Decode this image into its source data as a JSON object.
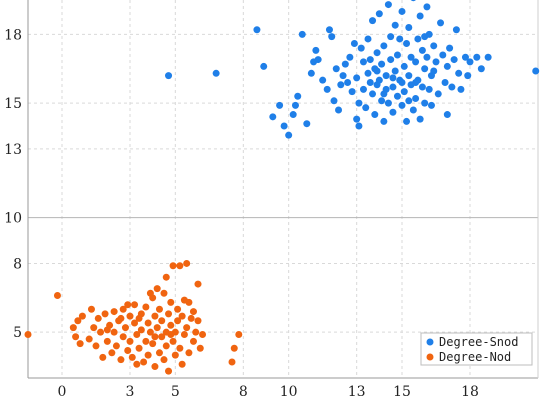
{
  "chart_data": {
    "type": "scatter",
    "title": "",
    "xlabel": "",
    "ylabel": "",
    "xlim": [
      -1.5,
      21
    ],
    "ylim": [
      3.0,
      19.5
    ],
    "x_ticks": [
      0,
      3,
      5,
      8,
      10,
      13,
      15,
      18
    ],
    "x_tick_labels": [
      "0",
      "3",
      "5",
      "8",
      "10",
      "13",
      "15",
      "18"
    ],
    "y_ticks": [
      5,
      8,
      10,
      13,
      15,
      18
    ],
    "y_tick_labels": [
      "5",
      "8",
      "10",
      "13",
      "15",
      "18"
    ],
    "grid": true,
    "legend_position": "bottom-right",
    "series": [
      {
        "name": "Degree-Snod",
        "color": "#1f7fe8",
        "points": [
          [
            4.7,
            16.2
          ],
          [
            6.8,
            16.3
          ],
          [
            8.6,
            18.2
          ],
          [
            8.9,
            16.6
          ],
          [
            9.3,
            14.4
          ],
          [
            9.6,
            14.9
          ],
          [
            9.8,
            14.0
          ],
          [
            10.0,
            13.6
          ],
          [
            10.2,
            14.5
          ],
          [
            10.3,
            14.9
          ],
          [
            10.4,
            15.3
          ],
          [
            10.6,
            18.0
          ],
          [
            10.8,
            14.1
          ],
          [
            11.0,
            16.3
          ],
          [
            11.1,
            16.8
          ],
          [
            11.2,
            17.3
          ],
          [
            11.3,
            16.9
          ],
          [
            11.5,
            16.0
          ],
          [
            11.7,
            15.6
          ],
          [
            11.8,
            18.2
          ],
          [
            11.9,
            17.9
          ],
          [
            12.0,
            15.1
          ],
          [
            12.1,
            16.5
          ],
          [
            12.2,
            14.7
          ],
          [
            12.3,
            15.8
          ],
          [
            12.4,
            16.2
          ],
          [
            12.6,
            15.9
          ],
          [
            12.7,
            17.0
          ],
          [
            12.8,
            15.5
          ],
          [
            12.9,
            17.6
          ],
          [
            13.0,
            16.1
          ],
          [
            13.0,
            14.3
          ],
          [
            13.1,
            15.0
          ],
          [
            13.2,
            17.4
          ],
          [
            13.3,
            16.8
          ],
          [
            13.3,
            15.6
          ],
          [
            13.4,
            14.8
          ],
          [
            13.5,
            16.3
          ],
          [
            13.5,
            17.8
          ],
          [
            13.6,
            15.9
          ],
          [
            13.6,
            16.9
          ],
          [
            13.7,
            15.4
          ],
          [
            13.7,
            18.6
          ],
          [
            13.8,
            16.5
          ],
          [
            13.8,
            14.5
          ],
          [
            13.9,
            17.2
          ],
          [
            13.9,
            15.8
          ],
          [
            14.0,
            16.0
          ],
          [
            14.0,
            18.9
          ],
          [
            14.1,
            15.1
          ],
          [
            14.1,
            16.7
          ],
          [
            14.2,
            14.2
          ],
          [
            14.2,
            17.5
          ],
          [
            14.3,
            15.6
          ],
          [
            14.3,
            16.2
          ],
          [
            14.4,
            19.3
          ],
          [
            14.4,
            15.0
          ],
          [
            14.5,
            16.9
          ],
          [
            14.5,
            17.9
          ],
          [
            14.6,
            15.7
          ],
          [
            14.6,
            14.6
          ],
          [
            14.7,
            16.4
          ],
          [
            14.7,
            18.4
          ],
          [
            14.8,
            15.3
          ],
          [
            14.8,
            17.1
          ],
          [
            14.9,
            16.0
          ],
          [
            15.0,
            19.0
          ],
          [
            15.0,
            14.9
          ],
          [
            15.1,
            16.6
          ],
          [
            15.1,
            15.5
          ],
          [
            15.2,
            17.6
          ],
          [
            15.2,
            14.2
          ],
          [
            15.3,
            16.2
          ],
          [
            15.3,
            18.3
          ],
          [
            15.4,
            15.8
          ],
          [
            15.4,
            17.0
          ],
          [
            15.5,
            14.7
          ],
          [
            15.5,
            19.6
          ],
          [
            15.6,
            16.8
          ],
          [
            15.6,
            15.2
          ],
          [
            15.7,
            17.8
          ],
          [
            15.7,
            16.0
          ],
          [
            15.8,
            14.3
          ],
          [
            15.8,
            18.8
          ],
          [
            15.9,
            15.7
          ],
          [
            15.9,
            17.3
          ],
          [
            16.0,
            16.5
          ],
          [
            16.0,
            15.0
          ],
          [
            16.1,
            19.2
          ],
          [
            16.1,
            17.0
          ],
          [
            16.2,
            15.6
          ],
          [
            16.2,
            18.0
          ],
          [
            16.3,
            16.2
          ],
          [
            16.3,
            14.9
          ],
          [
            16.4,
            17.5
          ],
          [
            16.5,
            16.8
          ],
          [
            16.6,
            15.4
          ],
          [
            16.7,
            18.5
          ],
          [
            16.8,
            17.1
          ],
          [
            16.9,
            15.9
          ],
          [
            17.0,
            14.5
          ],
          [
            17.0,
            16.6
          ],
          [
            17.1,
            17.4
          ],
          [
            17.2,
            15.7
          ],
          [
            17.3,
            16.9
          ],
          [
            17.4,
            18.2
          ],
          [
            17.5,
            16.3
          ],
          [
            17.6,
            15.6
          ],
          [
            17.8,
            17.0
          ],
          [
            18.0,
            16.8
          ],
          [
            18.3,
            17.0
          ],
          [
            18.5,
            16.5
          ],
          [
            18.8,
            17.0
          ],
          [
            20.9,
            16.4
          ],
          [
            13.1,
            14.0
          ],
          [
            14.6,
            16.1
          ],
          [
            15.0,
            15.9
          ],
          [
            12.5,
            16.7
          ],
          [
            16.4,
            16.4
          ],
          [
            15.6,
            15.9
          ],
          [
            13.9,
            16.4
          ],
          [
            14.9,
            17.8
          ],
          [
            16.0,
            17.9
          ],
          [
            15.3,
            15.1
          ],
          [
            14.2,
            15.4
          ],
          [
            17.9,
            16.2
          ]
        ]
      },
      {
        "name": "Degree-Nod",
        "color": "#f06410",
        "points": [
          [
            -1.5,
            4.9
          ],
          [
            -0.2,
            6.6
          ],
          [
            0.5,
            5.2
          ],
          [
            0.6,
            4.8
          ],
          [
            0.7,
            5.5
          ],
          [
            0.8,
            4.5
          ],
          [
            0.9,
            5.7
          ],
          [
            1.2,
            4.7
          ],
          [
            1.4,
            5.2
          ],
          [
            1.5,
            4.4
          ],
          [
            1.6,
            5.6
          ],
          [
            1.7,
            5.0
          ],
          [
            1.8,
            3.9
          ],
          [
            1.9,
            5.8
          ],
          [
            2.0,
            4.6
          ],
          [
            2.1,
            5.3
          ],
          [
            2.2,
            4.1
          ],
          [
            2.3,
            5.9
          ],
          [
            2.3,
            5.0
          ],
          [
            2.4,
            4.4
          ],
          [
            2.5,
            5.5
          ],
          [
            2.6,
            3.8
          ],
          [
            2.7,
            6.0
          ],
          [
            2.7,
            4.8
          ],
          [
            2.8,
            5.2
          ],
          [
            2.9,
            4.2
          ],
          [
            3.0,
            5.7
          ],
          [
            3.0,
            4.6
          ],
          [
            3.1,
            3.9
          ],
          [
            3.2,
            5.4
          ],
          [
            3.2,
            6.2
          ],
          [
            3.3,
            4.9
          ],
          [
            3.4,
            4.3
          ],
          [
            3.5,
            5.8
          ],
          [
            3.5,
            5.1
          ],
          [
            3.6,
            3.7
          ],
          [
            3.7,
            4.6
          ],
          [
            3.7,
            6.1
          ],
          [
            3.8,
            5.4
          ],
          [
            3.8,
            4.0
          ],
          [
            3.9,
            5.0
          ],
          [
            4.0,
            6.5
          ],
          [
            4.0,
            4.5
          ],
          [
            4.1,
            5.7
          ],
          [
            4.1,
            3.5
          ],
          [
            4.2,
            5.2
          ],
          [
            4.3,
            4.1
          ],
          [
            4.3,
            6.0
          ],
          [
            4.4,
            4.8
          ],
          [
            4.4,
            5.5
          ],
          [
            4.5,
            3.8
          ],
          [
            4.5,
            6.7
          ],
          [
            4.6,
            5.0
          ],
          [
            4.6,
            4.4
          ],
          [
            4.7,
            5.8
          ],
          [
            4.7,
            3.3
          ],
          [
            4.8,
            5.3
          ],
          [
            4.8,
            6.3
          ],
          [
            4.9,
            4.6
          ],
          [
            4.9,
            7.9
          ],
          [
            5.0,
            5.0
          ],
          [
            5.0,
            4.0
          ],
          [
            5.1,
            6.0
          ],
          [
            5.1,
            5.5
          ],
          [
            5.2,
            7.9
          ],
          [
            5.2,
            4.3
          ],
          [
            5.3,
            5.7
          ],
          [
            5.4,
            4.9
          ],
          [
            5.4,
            6.4
          ],
          [
            5.5,
            8.0
          ],
          [
            5.5,
            5.2
          ],
          [
            5.6,
            4.1
          ],
          [
            5.7,
            5.6
          ],
          [
            5.8,
            4.6
          ],
          [
            5.9,
            5.0
          ],
          [
            6.0,
            7.1
          ],
          [
            6.0,
            5.5
          ],
          [
            6.1,
            4.3
          ],
          [
            6.2,
            4.9
          ],
          [
            7.6,
            4.3
          ],
          [
            7.8,
            4.9
          ],
          [
            7.5,
            3.7
          ],
          [
            5.3,
            3.6
          ],
          [
            4.2,
            6.9
          ],
          [
            3.9,
            6.7
          ],
          [
            2.0,
            5.1
          ],
          [
            2.6,
            5.6
          ],
          [
            3.4,
            5.6
          ],
          [
            4.1,
            4.8
          ],
          [
            4.8,
            4.9
          ],
          [
            5.6,
            6.3
          ],
          [
            1.3,
            6.0
          ],
          [
            2.9,
            6.2
          ],
          [
            3.3,
            3.6
          ],
          [
            4.6,
            7.4
          ],
          [
            5.8,
            5.9
          ]
        ]
      }
    ]
  }
}
